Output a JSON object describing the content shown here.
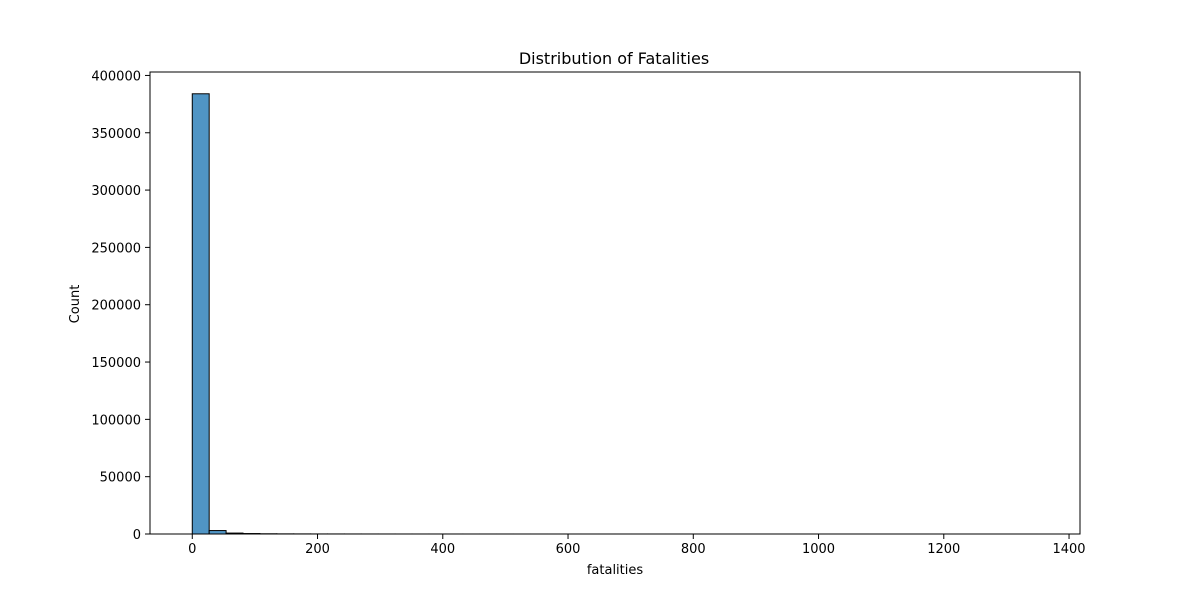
{
  "chart_data": {
    "type": "bar",
    "title": "Distribution of Fatalities",
    "xlabel": "fatalities",
    "ylabel": "Count",
    "xlim": [
      -67.5,
      1417.5
    ],
    "ylim": [
      0,
      403000
    ],
    "bin_width": 27,
    "bin_start": 0,
    "bin_counts": [
      384000,
      3000,
      800,
      400,
      200,
      120,
      90,
      60,
      50,
      40,
      30,
      25,
      20,
      20,
      15,
      15,
      12,
      10,
      10,
      8,
      8,
      6,
      6,
      5,
      5,
      5,
      4,
      4,
      4,
      3,
      3,
      3,
      3,
      2,
      2,
      2,
      2,
      2,
      2,
      2,
      1,
      1,
      1,
      1,
      1,
      1,
      1,
      1,
      1,
      1
    ],
    "x_ticks": [
      0,
      200,
      400,
      600,
      800,
      1000,
      1200,
      1400
    ],
    "y_ticks": [
      0,
      50000,
      100000,
      150000,
      200000,
      250000,
      300000,
      350000,
      400000
    ],
    "bar_color": "#5095c5",
    "edge_color": "#000000",
    "grid": false
  }
}
